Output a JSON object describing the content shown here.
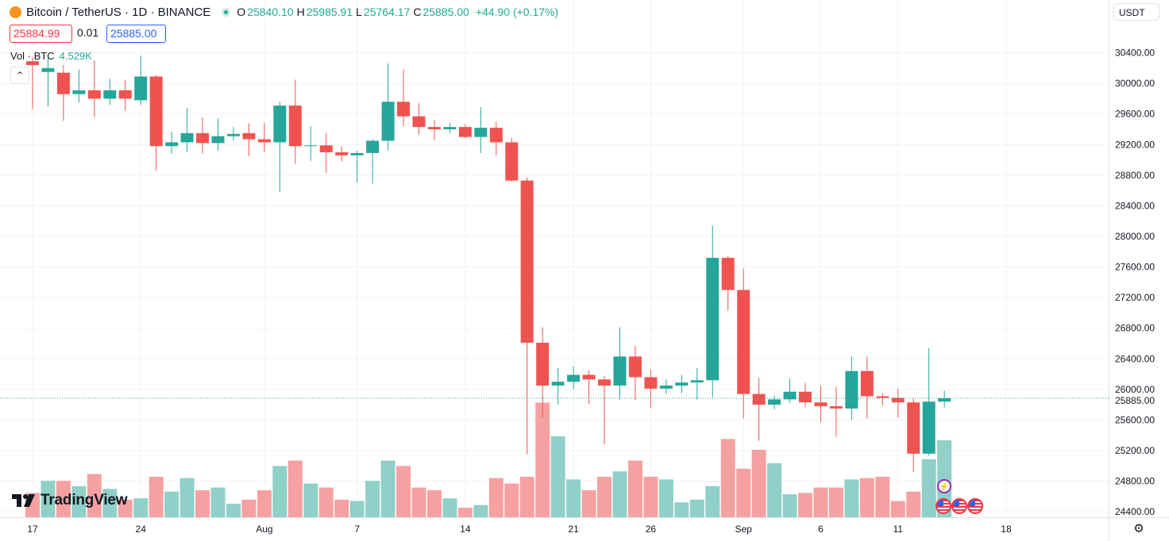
{
  "header": {
    "symbol": "Bitcoin / TetherUS · 1D · BINANCE",
    "open_label": "O",
    "open": "25840.10",
    "high_label": "H",
    "high": "25985.91",
    "low_label": "L",
    "low": "25764.17",
    "close_label": "C",
    "close": "25885.00",
    "change": "+44.90 (+0.17%)"
  },
  "trade": {
    "sell": "25884.99",
    "spread": "0.01",
    "buy": "25885.00"
  },
  "volume": {
    "label": "Vol · BTC",
    "value": "4.529K"
  },
  "currency": "USDT",
  "branding": "TradingView",
  "last_price_label": "25885.00",
  "colors": {
    "up": "#26a69a",
    "down": "#ef5350",
    "vol_up": "#8fd0c8",
    "vol_down": "#f6a1a1"
  },
  "chart_data": {
    "type": "candlestick",
    "price_ticks": [
      24400,
      24800,
      25200,
      25600,
      26000,
      26400,
      26800,
      27200,
      27600,
      28000,
      28400,
      28800,
      29200,
      29600,
      30000,
      30400
    ],
    "price_tick_labels": [
      "24400.00",
      "24800.00",
      "25200.00",
      "25600.00",
      "26000.00",
      "26400.00",
      "26800.00",
      "27200.00",
      "27600.00",
      "28000.00",
      "28400.00",
      "28800.00",
      "29200.00",
      "29600.00",
      "30000.00",
      "30400.00"
    ],
    "ylim": [
      24350,
      30800
    ],
    "x_ticks": [
      {
        "label": "17",
        "day": 0
      },
      {
        "label": "24",
        "day": 7
      },
      {
        "label": "Aug",
        "day": 15
      },
      {
        "label": "7",
        "day": 21
      },
      {
        "label": "14",
        "day": 28
      },
      {
        "label": "21",
        "day": 35
      },
      {
        "label": "26",
        "day": 40
      },
      {
        "label": "Sep",
        "day": 46
      },
      {
        "label": "6",
        "day": 51
      },
      {
        "label": "11",
        "day": 56
      },
      {
        "label": "18",
        "day": 63
      }
    ],
    "last_price": 25885,
    "candles": [
      {
        "o": 30290,
        "h": 30340,
        "l": 29660,
        "c": 30240,
        "v": 0.18
      },
      {
        "o": 30150,
        "h": 30330,
        "l": 29700,
        "c": 30200,
        "v": 0.27
      },
      {
        "o": 30140,
        "h": 30240,
        "l": 29510,
        "c": 29860,
        "v": 0.27
      },
      {
        "o": 29860,
        "h": 30180,
        "l": 29750,
        "c": 29910,
        "v": 0.23
      },
      {
        "o": 29910,
        "h": 30300,
        "l": 29560,
        "c": 29800,
        "v": 0.32
      },
      {
        "o": 29800,
        "h": 30060,
        "l": 29720,
        "c": 29910,
        "v": 0.21
      },
      {
        "o": 29910,
        "h": 30050,
        "l": 29640,
        "c": 29800,
        "v": 0.13
      },
      {
        "o": 29780,
        "h": 30360,
        "l": 29720,
        "c": 30090,
        "v": 0.14
      },
      {
        "o": 30090,
        "h": 30110,
        "l": 28860,
        "c": 29180,
        "v": 0.3
      },
      {
        "o": 29180,
        "h": 29370,
        "l": 29080,
        "c": 29230,
        "v": 0.19
      },
      {
        "o": 29230,
        "h": 29680,
        "l": 29100,
        "c": 29350,
        "v": 0.29
      },
      {
        "o": 29350,
        "h": 29550,
        "l": 29080,
        "c": 29220,
        "v": 0.2
      },
      {
        "o": 29220,
        "h": 29540,
        "l": 29120,
        "c": 29310,
        "v": 0.22
      },
      {
        "o": 29310,
        "h": 29430,
        "l": 29250,
        "c": 29340,
        "v": 0.1
      },
      {
        "o": 29350,
        "h": 29480,
        "l": 29050,
        "c": 29270,
        "v": 0.13
      },
      {
        "o": 29270,
        "h": 29480,
        "l": 29100,
        "c": 29230,
        "v": 0.2
      },
      {
        "o": 29230,
        "h": 29760,
        "l": 28580,
        "c": 29710,
        "v": 0.38
      },
      {
        "o": 29710,
        "h": 30050,
        "l": 28950,
        "c": 29180,
        "v": 0.42
      },
      {
        "o": 29180,
        "h": 29440,
        "l": 28990,
        "c": 29190,
        "v": 0.25
      },
      {
        "o": 29190,
        "h": 29350,
        "l": 28830,
        "c": 29100,
        "v": 0.22
      },
      {
        "o": 29100,
        "h": 29180,
        "l": 28980,
        "c": 29060,
        "v": 0.13
      },
      {
        "o": 29060,
        "h": 29120,
        "l": 28700,
        "c": 29090,
        "v": 0.12
      },
      {
        "o": 29090,
        "h": 29270,
        "l": 28690,
        "c": 29250,
        "v": 0.27
      },
      {
        "o": 29250,
        "h": 30260,
        "l": 29120,
        "c": 29760,
        "v": 0.42
      },
      {
        "o": 29760,
        "h": 30180,
        "l": 29440,
        "c": 29570,
        "v": 0.38
      },
      {
        "o": 29570,
        "h": 29740,
        "l": 29330,
        "c": 29430,
        "v": 0.22
      },
      {
        "o": 29430,
        "h": 29520,
        "l": 29260,
        "c": 29400,
        "v": 0.2
      },
      {
        "o": 29400,
        "h": 29480,
        "l": 29350,
        "c": 29430,
        "v": 0.14
      },
      {
        "o": 29430,
        "h": 29470,
        "l": 29280,
        "c": 29300,
        "v": 0.07
      },
      {
        "o": 29300,
        "h": 29690,
        "l": 29090,
        "c": 29420,
        "v": 0.09
      },
      {
        "o": 29420,
        "h": 29500,
        "l": 29060,
        "c": 29230,
        "v": 0.29
      },
      {
        "o": 29230,
        "h": 29290,
        "l": 28720,
        "c": 28730,
        "v": 0.25
      },
      {
        "o": 28730,
        "h": 28770,
        "l": 25150,
        "c": 26610,
        "v": 0.3
      },
      {
        "o": 26610,
        "h": 26810,
        "l": 25630,
        "c": 26050,
        "v": 0.85
      },
      {
        "o": 26050,
        "h": 26280,
        "l": 25800,
        "c": 26100,
        "v": 0.6
      },
      {
        "o": 26100,
        "h": 26300,
        "l": 26000,
        "c": 26190,
        "v": 0.28
      },
      {
        "o": 26190,
        "h": 26250,
        "l": 25810,
        "c": 26130,
        "v": 0.2
      },
      {
        "o": 26130,
        "h": 26180,
        "l": 25280,
        "c": 26050,
        "v": 0.3
      },
      {
        "o": 26050,
        "h": 26810,
        "l": 25860,
        "c": 26430,
        "v": 0.34
      },
      {
        "o": 26430,
        "h": 26570,
        "l": 25860,
        "c": 26160,
        "v": 0.42
      },
      {
        "o": 26160,
        "h": 26260,
        "l": 25760,
        "c": 26010,
        "v": 0.3
      },
      {
        "o": 26010,
        "h": 26130,
        "l": 25940,
        "c": 26050,
        "v": 0.28
      },
      {
        "o": 26050,
        "h": 26190,
        "l": 25950,
        "c": 26090,
        "v": 0.11
      },
      {
        "o": 26090,
        "h": 26280,
        "l": 25870,
        "c": 26120,
        "v": 0.13
      },
      {
        "o": 26120,
        "h": 28140,
        "l": 25900,
        "c": 27720,
        "v": 0.23
      },
      {
        "o": 27720,
        "h": 27750,
        "l": 27030,
        "c": 27300,
        "v": 0.58
      },
      {
        "o": 27300,
        "h": 27580,
        "l": 25620,
        "c": 25940,
        "v": 0.36
      },
      {
        "o": 25940,
        "h": 26150,
        "l": 25330,
        "c": 25800,
        "v": 0.5
      },
      {
        "o": 25800,
        "h": 25920,
        "l": 25740,
        "c": 25870,
        "v": 0.4
      },
      {
        "o": 25870,
        "h": 26140,
        "l": 25820,
        "c": 25970,
        "v": 0.17
      },
      {
        "o": 25970,
        "h": 26080,
        "l": 25770,
        "c": 25830,
        "v": 0.18
      },
      {
        "o": 25830,
        "h": 26050,
        "l": 25570,
        "c": 25780,
        "v": 0.22
      },
      {
        "o": 25780,
        "h": 26030,
        "l": 25380,
        "c": 25750,
        "v": 0.22
      },
      {
        "o": 25750,
        "h": 26430,
        "l": 25600,
        "c": 26240,
        "v": 0.28
      },
      {
        "o": 26240,
        "h": 26430,
        "l": 25620,
        "c": 25910,
        "v": 0.29
      },
      {
        "o": 25910,
        "h": 25950,
        "l": 25790,
        "c": 25890,
        "v": 0.3
      },
      {
        "o": 25890,
        "h": 26010,
        "l": 25630,
        "c": 25830,
        "v": 0.12
      },
      {
        "o": 25830,
        "h": 25880,
        "l": 24920,
        "c": 25160,
        "v": 0.19
      },
      {
        "o": 25160,
        "h": 26540,
        "l": 25130,
        "c": 25840,
        "v": 0.43
      },
      {
        "o": 25840,
        "h": 25985,
        "l": 25764,
        "c": 25885,
        "v": 0.57
      }
    ]
  }
}
